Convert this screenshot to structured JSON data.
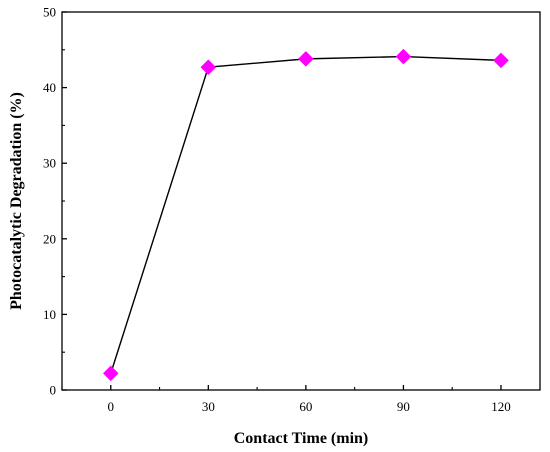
{
  "chart_data": {
    "type": "line",
    "title": "",
    "xlabel": "Contact Time (min)",
    "ylabel": "Photocatalytic Degradation (%)",
    "xlim": [
      -15,
      132
    ],
    "ylim": [
      0,
      50
    ],
    "xticks": [
      0,
      30,
      60,
      90,
      120
    ],
    "yticks": [
      0,
      10,
      20,
      30,
      40,
      50
    ],
    "grid": false,
    "legend": "none",
    "series": [
      {
        "x": [
          0,
          30,
          60,
          90,
          120
        ],
        "y": [
          2.2,
          42.7,
          43.8,
          44.1,
          43.6
        ],
        "color": "#ff00ff",
        "line_color": "#000000",
        "marker": "diamond"
      }
    ]
  }
}
